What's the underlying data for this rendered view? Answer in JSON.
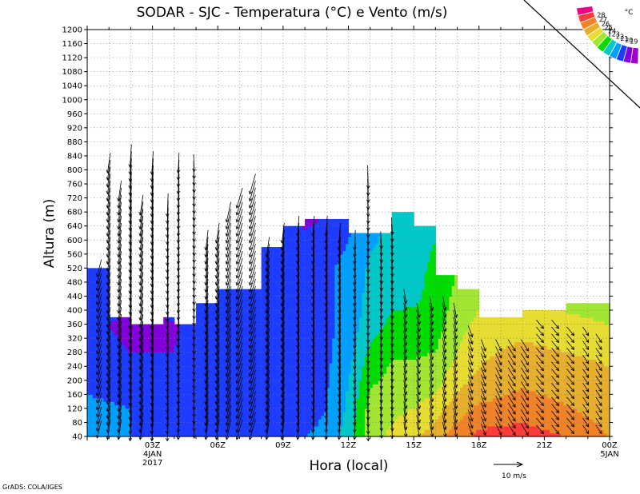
{
  "chart_data": {
    "type": "heatmap",
    "title": "SODAR - SJC - Temperatura (°C) e Vento (m/s)",
    "xlabel": "Hora (local)",
    "ylabel": "Altura (m)",
    "ylim": [
      40,
      1200
    ],
    "y_ticks": [
      40,
      80,
      120,
      160,
      200,
      240,
      280,
      320,
      360,
      400,
      440,
      480,
      520,
      560,
      600,
      640,
      680,
      720,
      760,
      800,
      840,
      880,
      920,
      960,
      1000,
      1040,
      1080,
      1120,
      1160,
      1200
    ],
    "xlim_hours": [
      0,
      24
    ],
    "x_ticks": [
      {
        "hour": 3,
        "label": "03Z",
        "sub1": "4JAN",
        "sub2": "2017"
      },
      {
        "hour": 6,
        "label": "06Z"
      },
      {
        "hour": 9,
        "label": "09Z"
      },
      {
        "hour": 12,
        "label": "12Z"
      },
      {
        "hour": 15,
        "label": "15Z"
      },
      {
        "hour": 18,
        "label": "18Z"
      },
      {
        "hour": 21,
        "label": "21Z"
      },
      {
        "hour": 24,
        "label": "00Z",
        "sub1": "5JAN"
      }
    ],
    "grid": true,
    "colorbar": {
      "unit": "°C",
      "levels": [
        19,
        20,
        21,
        22,
        23,
        24,
        25,
        26,
        27,
        28
      ],
      "colors": [
        "#a000c8",
        "#8200dc",
        "#1e3cff",
        "#00a0ff",
        "#00c8c8",
        "#00dc00",
        "#a0e632",
        "#e6dc32",
        "#e6af2d",
        "#f08228",
        "#fa3c3c",
        "#f00082"
      ]
    },
    "data_top_m": [
      {
        "h0": 0,
        "h1": 1,
        "top": 520
      },
      {
        "h0": 1,
        "h1": 2,
        "top": 380
      },
      {
        "h0": 2,
        "h1": 3.5,
        "top": 360
      },
      {
        "h0": 3.5,
        "h1": 4,
        "top": 380
      },
      {
        "h0": 4,
        "h1": 5,
        "top": 360
      },
      {
        "h0": 5,
        "h1": 6,
        "top": 420
      },
      {
        "h0": 6,
        "h1": 8,
        "top": 460
      },
      {
        "h0": 8,
        "h1": 9,
        "top": 580
      },
      {
        "h0": 9,
        "h1": 10,
        "top": 640
      },
      {
        "h0": 10,
        "h1": 12,
        "top": 660
      },
      {
        "h0": 12,
        "h1": 13,
        "top": 620
      },
      {
        "h0": 13,
        "h1": 14,
        "top": 620
      },
      {
        "h0": 14,
        "h1": 15,
        "top": 680
      },
      {
        "h0": 15,
        "h1": 16,
        "top": 640
      },
      {
        "h0": 16,
        "h1": 17,
        "top": 500
      },
      {
        "h0": 17,
        "h1": 18,
        "top": 460
      },
      {
        "h0": 18,
        "h1": 20,
        "top": 380
      },
      {
        "h0": 20,
        "h1": 21,
        "top": 400
      },
      {
        "h0": 21,
        "h1": 22,
        "top": 400
      },
      {
        "h0": 22,
        "h1": 24,
        "top": 420
      }
    ],
    "temperature_grid": {
      "hours": [
        0,
        2,
        4,
        6,
        8,
        10,
        11,
        12,
        13,
        14,
        15,
        16,
        17,
        18,
        20,
        22,
        24
      ],
      "heights": [
        40,
        120,
        200,
        280,
        360,
        440,
        520,
        600,
        680
      ],
      "values": [
        [
          21.2,
          21.0,
          20.6,
          20.6,
          20.6,
          21.0,
          21.3,
          22.5,
          24.6,
          25.2,
          25.8,
          26.5,
          27.5,
          28.3,
          28.5,
          28.0,
          27.0
        ],
        [
          21.2,
          21.0,
          20.8,
          20.7,
          20.6,
          20.5,
          21.0,
          22.2,
          24.4,
          24.8,
          25.0,
          25.5,
          26.5,
          27.2,
          27.5,
          27.1,
          26.5
        ],
        [
          20.8,
          20.6,
          20.1,
          20.8,
          20.5,
          20.5,
          20.9,
          22.0,
          23.8,
          24.3,
          24.3,
          24.6,
          25.7,
          26.2,
          26.8,
          26.5,
          26.2
        ],
        [
          20.4,
          20.0,
          20.0,
          20.7,
          20.2,
          20.4,
          20.8,
          21.6,
          23.2,
          23.9,
          23.9,
          24.0,
          25.0,
          25.8,
          26.3,
          26.0,
          25.8
        ],
        [
          20.3,
          19.7,
          19.9,
          20.5,
          20.2,
          20.4,
          20.8,
          21.3,
          22.6,
          23.2,
          23.3,
          23.6,
          24.6,
          25.3,
          25.6,
          25.3,
          25.0
        ],
        [
          20.6,
          20.4,
          20.6,
          20.7,
          20.7,
          20.8,
          20.9,
          21.2,
          22.4,
          22.8,
          22.8,
          23.3,
          24.3,
          24.7,
          24.8,
          24.6,
          24.4
        ],
        [
          20.9,
          20.8,
          20.9,
          20.9,
          20.8,
          20.8,
          20.9,
          21.2,
          22.2,
          22.6,
          22.7,
          23.2,
          24.0,
          24.4,
          24.6,
          24.4,
          24.2
        ],
        [
          20.9,
          20.8,
          20.9,
          20.9,
          20.8,
          20.2,
          20.6,
          21.0,
          21.8,
          22.3,
          22.6,
          23.0,
          23.7,
          24.2,
          24.4,
          24.2,
          24.0
        ],
        [
          20.9,
          20.8,
          20.9,
          20.9,
          20.8,
          19.6,
          19.9,
          20.5,
          21.6,
          22.0,
          22.6,
          22.8,
          23.6,
          24.0,
          24.2,
          24.0,
          23.8
        ]
      ]
    },
    "wind_profiles": [
      {
        "hour": 0.55,
        "top": 520,
        "u": -1.5,
        "v": -6
      },
      {
        "hour": 1.0,
        "top": 820,
        "u": -1.0,
        "v": -7
      },
      {
        "hour": 1.5,
        "top": 740,
        "u": -1.0,
        "v": -7
      },
      {
        "hour": 2.0,
        "top": 840,
        "u": -0.5,
        "v": -8
      },
      {
        "hour": 2.5,
        "top": 700,
        "u": -1.0,
        "v": -7
      },
      {
        "hour": 3.0,
        "top": 820,
        "u": -0.5,
        "v": -8
      },
      {
        "hour": 3.7,
        "top": 700,
        "u": -0.3,
        "v": -8
      },
      {
        "hour": 4.2,
        "top": 820,
        "u": -0.3,
        "v": -7
      },
      {
        "hour": 4.9,
        "top": 820,
        "u": 0.2,
        "v": -6
      },
      {
        "hour": 5.5,
        "top": 600,
        "u": -0.8,
        "v": -7
      },
      {
        "hour": 6.0,
        "top": 620,
        "u": -1.0,
        "v": -7
      },
      {
        "hour": 6.5,
        "top": 680,
        "u": -1.5,
        "v": -7
      },
      {
        "hour": 7.0,
        "top": 720,
        "u": -2.0,
        "v": -7
      },
      {
        "hour": 7.6,
        "top": 760,
        "u": -2.0,
        "v": -7
      },
      {
        "hour": 8.3,
        "top": 580,
        "u": -1.0,
        "v": -7
      },
      {
        "hour": 9.0,
        "top": 620,
        "u": -0.8,
        "v": -7
      },
      {
        "hour": 9.7,
        "top": 640,
        "u": -0.5,
        "v": -7
      },
      {
        "hour": 10.4,
        "top": 640,
        "u": -0.5,
        "v": -7
      },
      {
        "hour": 11.0,
        "top": 640,
        "u": -0.5,
        "v": -7
      },
      {
        "hour": 11.6,
        "top": 620,
        "u": -0.5,
        "v": -7
      },
      {
        "hour": 12.3,
        "top": 600,
        "u": -0.3,
        "v": -7
      },
      {
        "hour": 12.9,
        "top": 780,
        "u": 0.2,
        "v": -8
      },
      {
        "hour": 13.5,
        "top": 600,
        "u": 0.3,
        "v": -6
      },
      {
        "hour": 14.0,
        "top": 640,
        "u": 0.3,
        "v": -6
      },
      {
        "hour": 14.6,
        "top": 440,
        "u": 0.8,
        "v": -5
      },
      {
        "hour": 15.2,
        "top": 400,
        "u": 1.0,
        "v": -5
      },
      {
        "hour": 15.8,
        "top": 420,
        "u": 1.0,
        "v": -5
      },
      {
        "hour": 16.4,
        "top": 420,
        "u": 1.0,
        "v": -5
      },
      {
        "hour": 16.9,
        "top": 400,
        "u": 1.0,
        "v": -5
      },
      {
        "hour": 17.6,
        "top": 340,
        "u": 1.5,
        "v": -4
      },
      {
        "hour": 18.2,
        "top": 300,
        "u": 1.5,
        "v": -4
      },
      {
        "hour": 18.9,
        "top": 300,
        "u": 2.0,
        "v": -4
      },
      {
        "hour": 19.5,
        "top": 300,
        "u": 2.5,
        "v": -4
      },
      {
        "hour": 20.1,
        "top": 300,
        "u": 2.5,
        "v": -4
      },
      {
        "hour": 20.8,
        "top": 360,
        "u": 2.5,
        "v": -3
      },
      {
        "hour": 21.5,
        "top": 360,
        "u": 2.5,
        "v": -3
      },
      {
        "hour": 22.2,
        "top": 340,
        "u": 2.5,
        "v": -3
      },
      {
        "hour": 22.9,
        "top": 340,
        "u": 2.0,
        "v": -3
      },
      {
        "hour": 23.5,
        "top": 320,
        "u": 2.0,
        "v": -3
      }
    ],
    "wind_scale_label": "10 m/s",
    "wind_scale_value": 10
  },
  "credit": "GrADS: COLA/IGES"
}
